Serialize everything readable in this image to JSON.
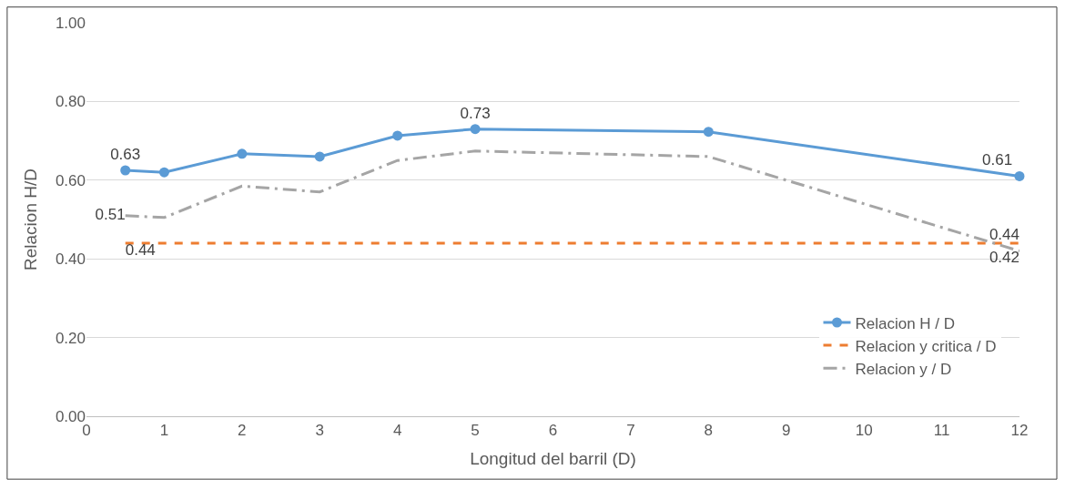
{
  "chart_data": {
    "type": "line",
    "xlabel": "Longitud del barril (D)",
    "ylabel": "Relacion H/D",
    "xlim": [
      0,
      12
    ],
    "xticks": [
      0,
      1,
      2,
      3,
      4,
      5,
      6,
      7,
      8,
      9,
      10,
      11,
      12
    ],
    "ylim": [
      0,
      1
    ],
    "yticks": [
      {
        "value": 0,
        "label": "0.00"
      },
      {
        "value": 0.2,
        "label": "0.20"
      },
      {
        "value": 0.4,
        "label": "0.40"
      },
      {
        "value": 0.6,
        "label": "0.60"
      },
      {
        "value": 0.8,
        "label": "0.80"
      },
      {
        "value": 1,
        "label": "1.00"
      }
    ],
    "grid": "y",
    "legend": "bottom right",
    "series": [
      {
        "name": "Relacion H / D",
        "color": "#5b9bd5",
        "marker": "circle",
        "line_style": "solid",
        "x": [
          0.5,
          1,
          2,
          3,
          4,
          5,
          8,
          12
        ],
        "values": [
          0.625,
          0.62,
          0.667,
          0.66,
          0.713,
          0.73,
          0.723,
          0.61
        ],
        "value_labels": [
          "0.63",
          null,
          null,
          null,
          null,
          "0.73",
          null,
          "0.61"
        ]
      },
      {
        "name": "Relacion y critica / D",
        "color": "#ed7d31",
        "marker": "none",
        "line_style": "dashed",
        "x": [
          0.5,
          12
        ],
        "values": [
          0.44,
          0.44
        ],
        "value_labels": [
          "0.44",
          "0.44"
        ]
      },
      {
        "name": "Relacion y / D",
        "color": "#a5a5a5",
        "marker": "none",
        "line_style": "dashdot",
        "x": [
          0.5,
          1,
          2,
          3,
          4,
          5,
          8,
          12
        ],
        "values": [
          0.51,
          0.505,
          0.585,
          0.57,
          0.65,
          0.674,
          0.66,
          0.42
        ],
        "value_labels": [
          "0.51",
          null,
          null,
          null,
          null,
          null,
          null,
          "0.42"
        ]
      }
    ]
  }
}
